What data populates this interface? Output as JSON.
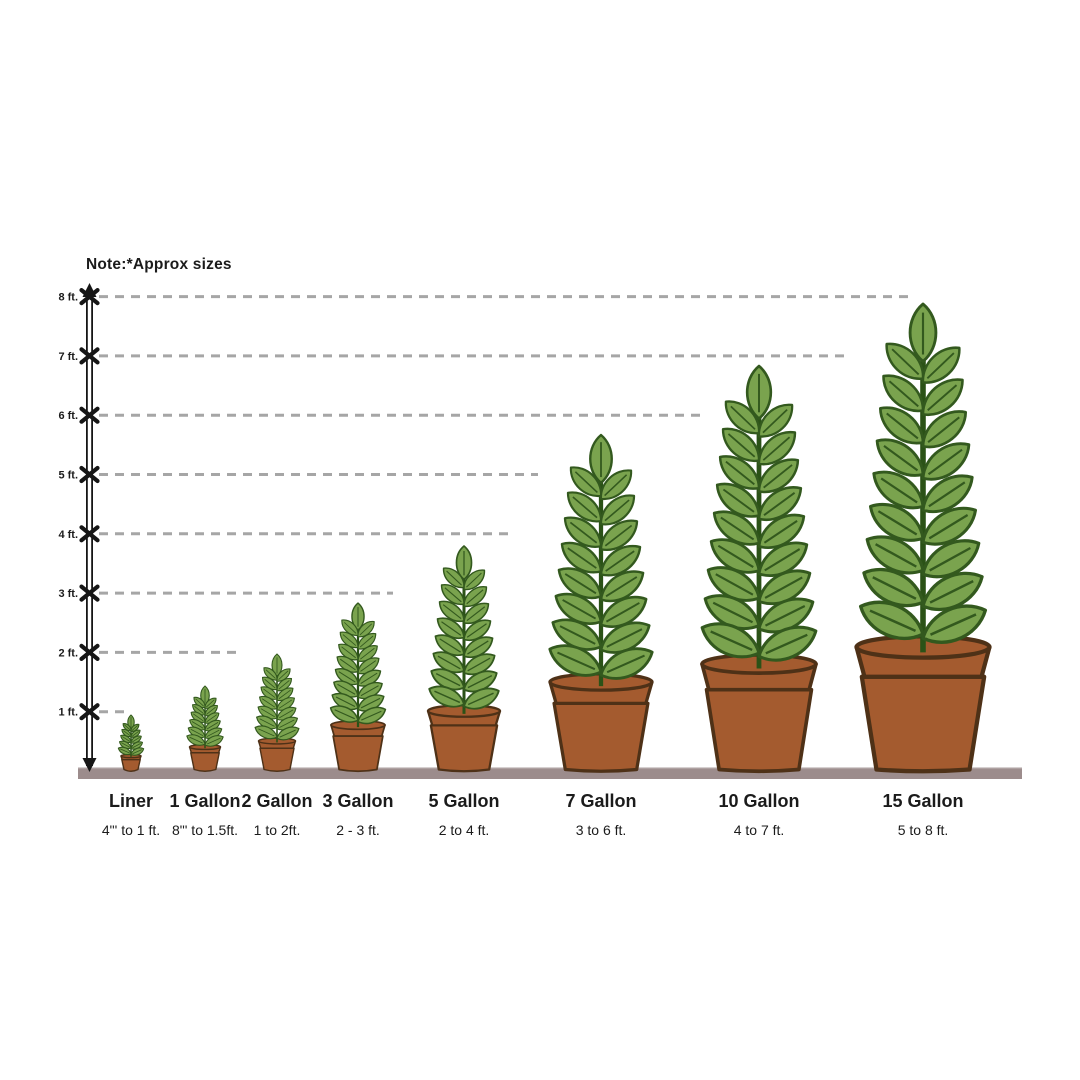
{
  "note": "Note:*Approx sizes",
  "chart_data": {
    "type": "bar",
    "style": "pictorial-potted-plants-size-comparison",
    "note": "Note:*Approx sizes",
    "categories": [
      "Liner",
      "1 Gallon",
      "2 Gallon",
      "3 Gallon",
      "5 Gallon",
      "7 Gallon",
      "10 Gallon",
      "15 Gallon"
    ],
    "size_ranges": [
      "4\"' to 1 ft.",
      "8\"' to 1.5ft.",
      "1 to 2ft.",
      "2 - 3 ft.",
      "2 to 4 ft.",
      "3 to 6 ft.",
      "4 to 7 ft.",
      "5 to 8 ft."
    ],
    "max_heights_ft": [
      1,
      1.5,
      2,
      3,
      4,
      6,
      7,
      8
    ],
    "y_ticks": [
      "8 ft.",
      "7 ft.",
      "6 ft.",
      "5 ft.",
      "4 ft.",
      "3 ft.",
      "2 ft.",
      "1 ft."
    ],
    "y_tick_values": [
      8,
      7,
      6,
      5,
      4,
      3,
      2,
      1
    ],
    "ylim": [
      0,
      8
    ],
    "y_unit": "ft",
    "grid": "dashed horizontal lines, each ending above the matching plant",
    "legend": "none",
    "colors": {
      "leaf": "#7AA34E",
      "leaf_outline": "#33591E",
      "stem": "#2B5217",
      "pot": "#A45B2F",
      "pot_outline": "#4E3117",
      "ground": "#9C8C8C",
      "ground_highlight": "#B3A6A6",
      "gridline": "#A6A6A6",
      "axis": "#161616",
      "text": "#1B1B1B"
    }
  }
}
